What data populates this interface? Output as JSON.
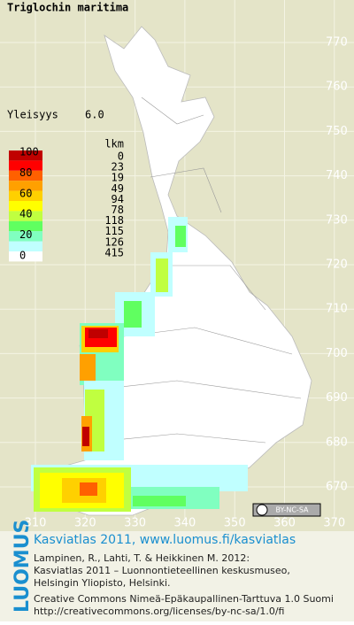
{
  "title": "Triglochin maritima",
  "frequency": {
    "label": "Yleisyys",
    "value": "6.0"
  },
  "legend": {
    "scale_labels": [
      "100",
      "80",
      "60",
      "40",
      "20",
      "0"
    ],
    "count_header": "lkm",
    "counts": [
      0,
      23,
      19,
      49,
      94,
      78,
      118,
      115,
      126,
      415
    ]
  },
  "grid": {
    "x_labels": [
      "310",
      "320",
      "330",
      "340",
      "350",
      "360",
      "370"
    ],
    "y_labels": [
      "770",
      "760",
      "750",
      "740",
      "730",
      "720",
      "710",
      "700",
      "690",
      "680",
      "670"
    ]
  },
  "license_badge": "BY-NC-SA",
  "footer": {
    "logo": "LUOMUS",
    "link": "Kasviatlas 2011, www.luomus.fi/kasviatlas",
    "citation": [
      "Lampinen, R., Lahti, T. & Heikkinen M. 2012:",
      "Kasviatlas 2011 – Luonnontieteellinen keskusmuseo,",
      "Helsingin Yliopisto, Helsinki."
    ],
    "license": [
      "Creative Commons Nimeä-Epäkaupallinen-Tarttuva 1.0 Suomi",
      "http://creativecommons.org/licenses/by-nc-sa/1.0/fi"
    ]
  }
}
